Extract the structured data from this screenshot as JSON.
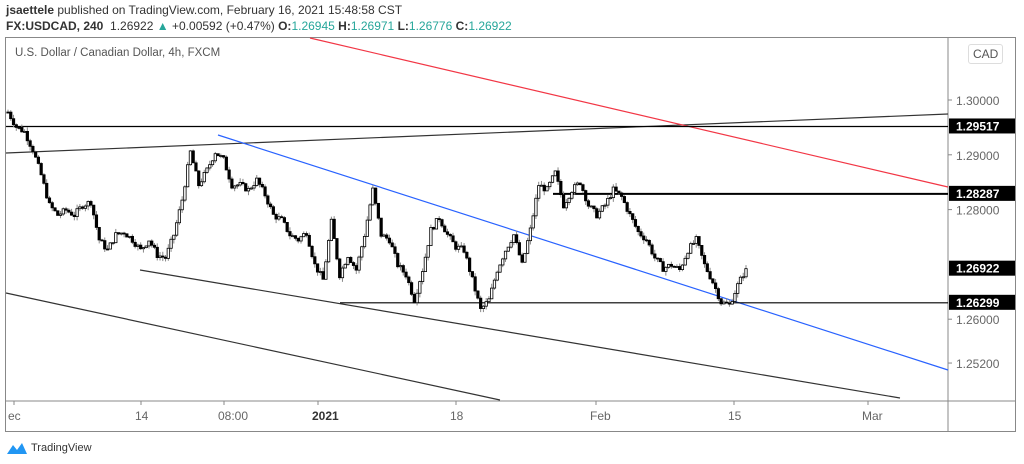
{
  "header": {
    "author": "jsaettele",
    "published": "published on TradingView.com, February 16, 2021 15:48:58 CST",
    "symbol": "FX:USDCAD, 240",
    "last": "1.26922",
    "change": "+0.00592 (+0.47%)",
    "open_label": "O:",
    "open": "1.26945",
    "high_label": "H:",
    "high": "1.26971",
    "low_label": "L:",
    "low": "1.26776",
    "close_label": "C:",
    "close": "1.26922"
  },
  "chart_data": {
    "type": "candlestick",
    "title": "U.S. Dollar / Canadian Dollar, 4h, FXCM",
    "currency_badge": "CAD",
    "ylim": [
      1.2475,
      1.31
    ],
    "y_ticks": [
      "1.30000",
      "1.29000",
      "1.28000",
      "1.26000",
      "1.25200"
    ],
    "x_ticks": [
      "ec",
      "14",
      "08:00",
      "2021",
      "18",
      "Feb",
      "15",
      "Mar"
    ],
    "close_path": [
      1.2978,
      1.2951,
      1.2942,
      1.2909,
      1.2863,
      1.2808,
      1.279,
      1.2799,
      1.279,
      1.2808,
      1.2814,
      1.2745,
      1.2726,
      1.2754,
      1.2759,
      1.2745,
      1.2726,
      1.2745,
      1.2717,
      1.2712,
      1.2754,
      1.2818,
      1.2905,
      1.2845,
      1.2872,
      1.2905,
      1.2891,
      1.2845,
      1.2845,
      1.2836,
      1.2854,
      1.2827,
      1.279,
      1.2781,
      1.2754,
      1.2745,
      1.2759,
      1.2699,
      1.2672,
      1.2777,
      1.2681,
      1.2717,
      1.269,
      1.2754,
      1.2836,
      1.2754,
      1.2745,
      1.2699,
      1.2681,
      1.2635,
      1.269,
      1.2763,
      1.2785,
      1.2754,
      1.2732,
      1.2726,
      1.2672,
      1.2617,
      1.2635,
      1.269,
      1.2726,
      1.2754,
      1.2699,
      1.2763,
      1.2845,
      1.2836,
      1.2867,
      1.2808,
      1.2836,
      1.285,
      1.2808,
      1.279,
      1.2808,
      1.2836,
      1.2823,
      1.279,
      1.2759,
      1.2745,
      1.2712,
      1.2693,
      1.2699,
      1.269,
      1.2726,
      1.2745,
      1.2699,
      1.2668,
      1.2631,
      1.2626,
      1.2662,
      1.26922
    ],
    "horizontal_levels": [
      {
        "price": 1.29517,
        "label": "1.29517"
      },
      {
        "price": 1.28287,
        "label": "1.28287"
      },
      {
        "price": 1.26299,
        "label": "1.26299"
      }
    ],
    "last_price_label": "1.26922",
    "colors": {
      "candle": "#000000",
      "wick": "#888888",
      "resistance_line": "#f23645",
      "channel_line": "#2962ff",
      "trend_line": "#333333",
      "up": "#26a69a"
    }
  },
  "footer": {
    "brand": "TradingView"
  }
}
